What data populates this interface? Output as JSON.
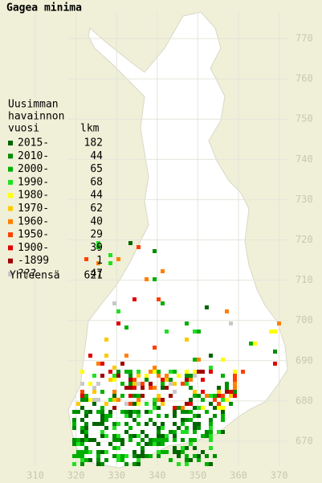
{
  "title": "Gagea minima",
  "legend": {
    "heading": [
      "Uusimman",
      "havainnon",
      "vuosi"
    ],
    "count_heading": "lkm",
    "rows": [
      {
        "label": "2015-",
        "count": 182,
        "color": "#006400"
      },
      {
        "label": "2010-",
        "count": 44,
        "color": "#008c00"
      },
      {
        "label": "2000-",
        "count": 65,
        "color": "#00b000"
      },
      {
        "label": "1990-",
        "count": 68,
        "color": "#20e020"
      },
      {
        "label": "1980-",
        "count": 44,
        "color": "#ffff00"
      },
      {
        "label": "1970-",
        "count": 62,
        "color": "#ffc800"
      },
      {
        "label": "1960-",
        "count": 40,
        "color": "#ff8000"
      },
      {
        "label": "1950-",
        "count": 29,
        "color": "#ff4000"
      },
      {
        "label": "1900-",
        "count": 39,
        "color": "#e00000"
      },
      {
        "label": "-1899",
        "count": 1,
        "color": "#a00000"
      },
      {
        "label": "???",
        "count": 47,
        "color": "#c8c8c8"
      }
    ],
    "total_label": "Yhteensä",
    "total": 621
  },
  "map": {
    "xticks": [
      310,
      320,
      330,
      340,
      350,
      360,
      370
    ],
    "yticks": [
      770,
      760,
      750,
      740,
      730,
      720,
      710,
      700,
      690,
      680,
      670
    ]
  }
}
